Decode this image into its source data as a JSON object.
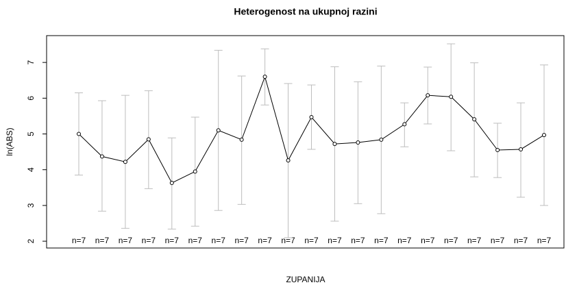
{
  "chart_data": {
    "type": "line",
    "title": "Heterogenost na ukupnoj razini",
    "x_label": "ZUPANIJA",
    "y_label": "ln(ABS)",
    "categories": [
      null,
      null,
      null,
      null,
      null,
      null,
      null,
      null,
      null,
      null,
      null,
      null,
      null,
      null,
      null,
      null,
      null,
      null,
      null,
      null,
      null
    ],
    "n_labels": [
      "n=7",
      "n=7",
      "n=7",
      "n=7",
      "n=7",
      "n=7",
      "n=7",
      "n=7",
      "n=7",
      "n=7",
      "n=7",
      "n=7",
      "n=7",
      "n=7",
      "n=7",
      "n=7",
      "n=7",
      "n=7",
      "n=7",
      "n=7",
      "n=7"
    ],
    "series": [
      {
        "color": "#000000",
        "error_color": "#bdbdbd",
        "values": [
          5.0,
          4.37,
          4.22,
          4.85,
          3.63,
          3.95,
          5.1,
          4.84,
          6.6,
          4.26,
          5.47,
          4.72,
          4.76,
          4.84,
          5.27,
          6.08,
          6.04,
          5.41,
          4.55,
          4.57,
          4.97
        ],
        "upper": [
          6.15,
          5.93,
          6.08,
          6.21,
          4.89,
          5.47,
          7.34,
          6.62,
          7.38,
          6.41,
          6.37,
          6.88,
          6.46,
          6.9,
          5.87,
          6.87,
          7.52,
          6.99,
          5.3,
          5.87,
          6.93
        ],
        "lower": [
          3.85,
          2.84,
          2.36,
          3.47,
          2.34,
          2.42,
          2.86,
          3.03,
          5.81,
          2.1,
          4.57,
          2.56,
          3.05,
          2.77,
          4.64,
          5.28,
          4.53,
          3.8,
          3.78,
          3.23,
          3.0
        ]
      }
    ],
    "ylim": [
      1.81,
      7.75
    ],
    "yticks": [
      2,
      3,
      4,
      5,
      6,
      7
    ]
  }
}
